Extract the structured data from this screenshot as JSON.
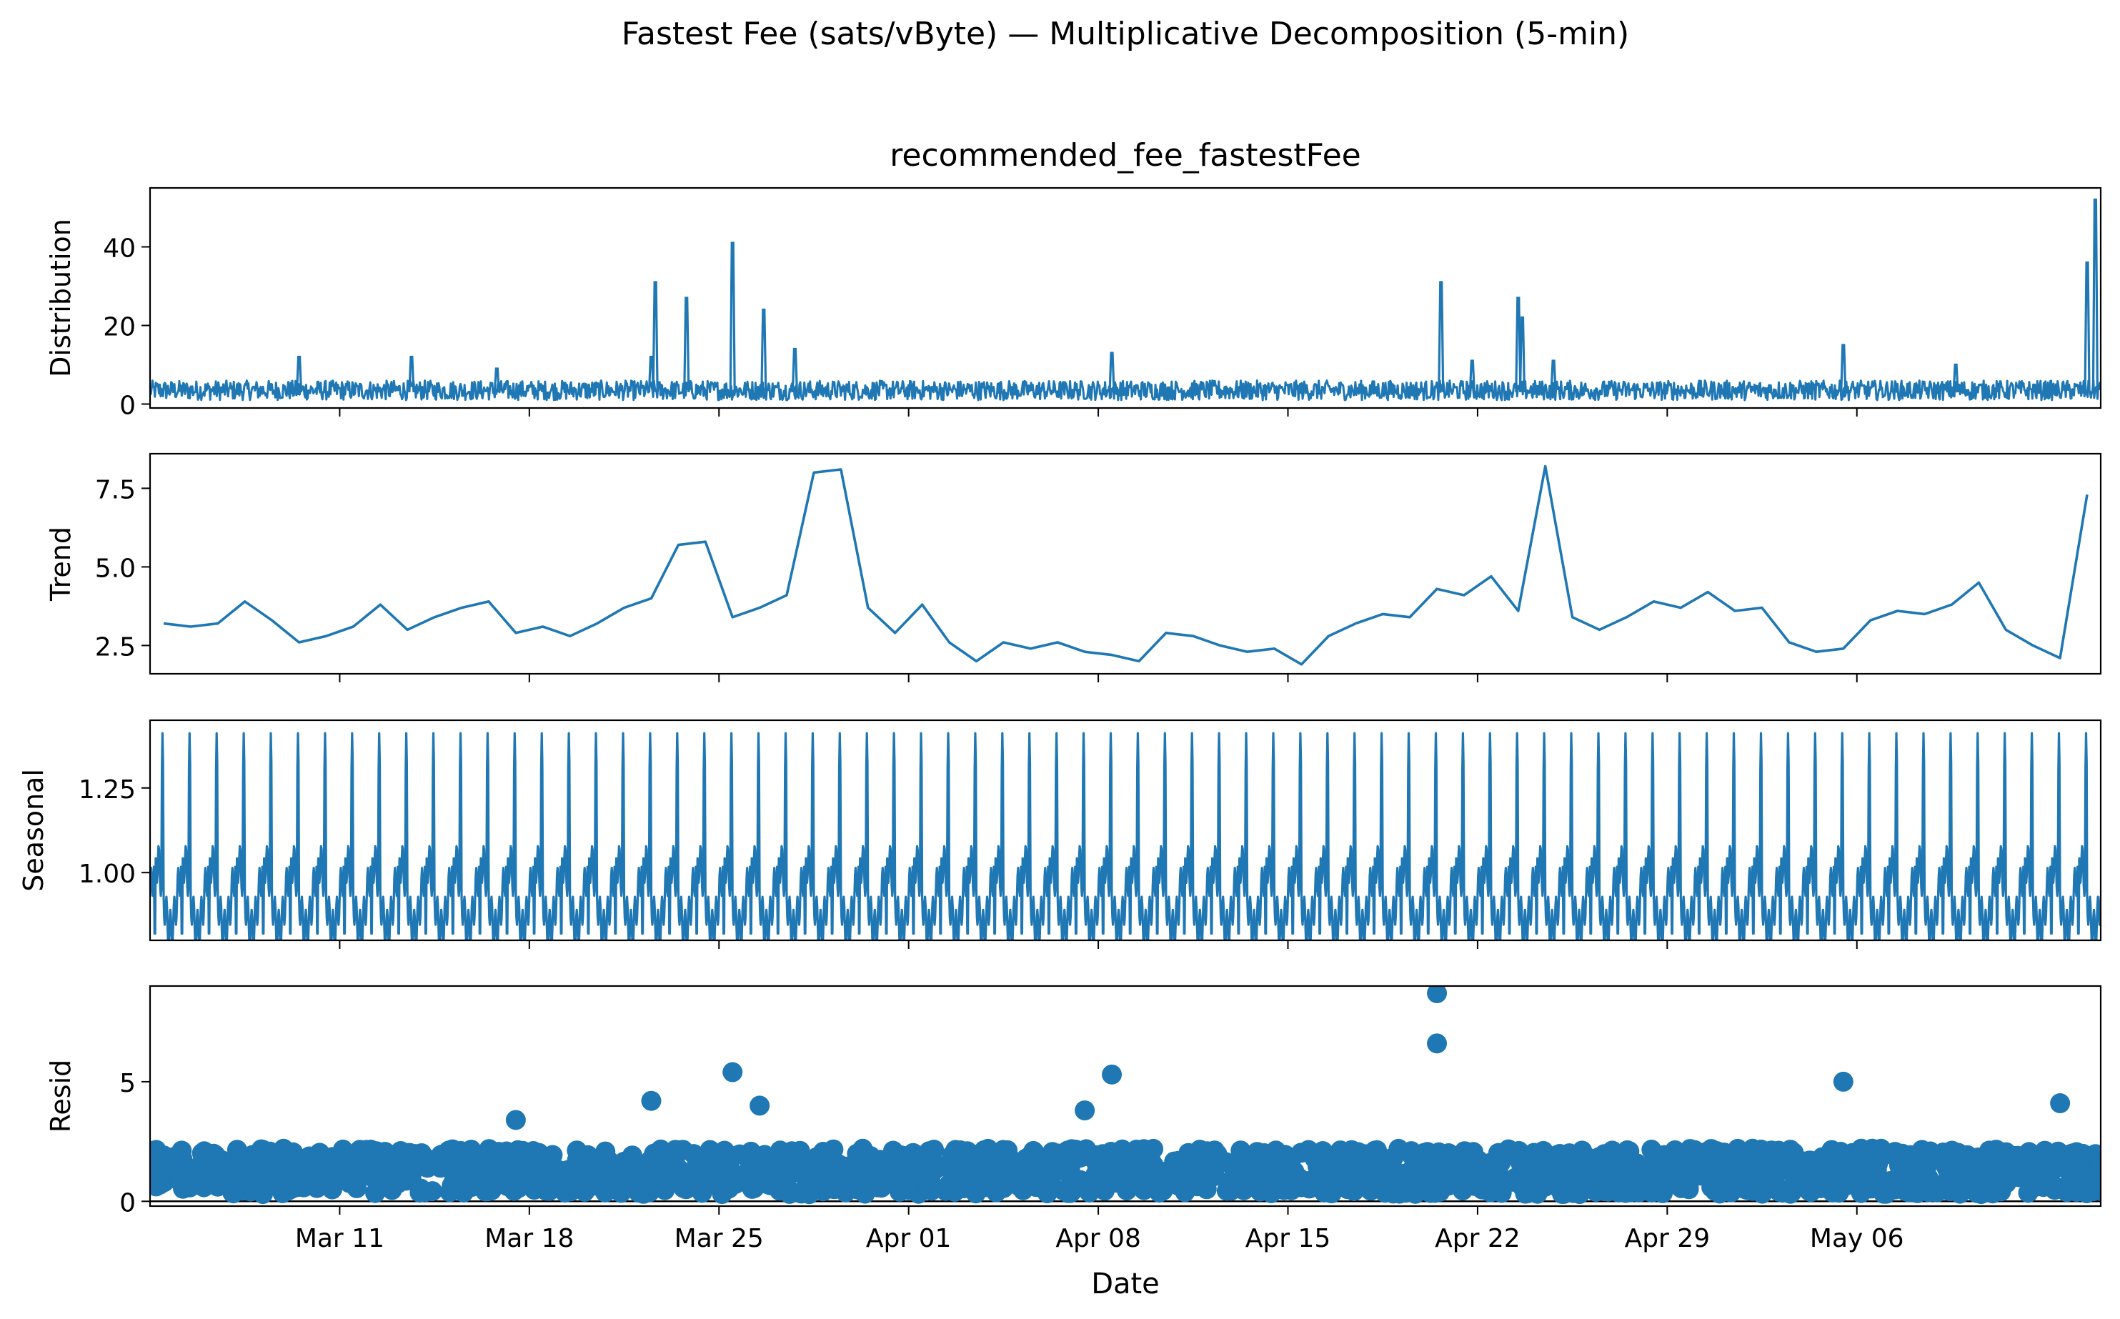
{
  "figure_title": "Fastest Fee (sats/vByte) — Multiplicative Decomposition (5-min)",
  "colors": {
    "series": "#1f77b4",
    "axis": "#000000",
    "zero_line": "#000000"
  },
  "chart_data": [
    {
      "type": "line",
      "title": "recommended_fee_fastestFee",
      "ylabel": "Distribution",
      "xlabel": "",
      "ylim": [
        -1,
        55
      ],
      "yticks": [
        0,
        20,
        40
      ],
      "ytick_labels": [
        "0",
        "20",
        "40"
      ],
      "grid": false,
      "x_axis": "date",
      "date_range": [
        "2024-03-04",
        "2024-05-14"
      ],
      "baseline": {
        "low": 1,
        "high": 6
      },
      "spikes": [
        {
          "date": "2024-03-09",
          "value": 12
        },
        {
          "date": "2024-03-13",
          "value": 12
        },
        {
          "date": "2024-03-16",
          "value": 9
        },
        {
          "date": "2024-03-22",
          "value": 12
        },
        {
          "date": "2024-03-22",
          "value": 31
        },
        {
          "date": "2024-03-23",
          "value": 27
        },
        {
          "date": "2024-03-25",
          "value": 41
        },
        {
          "date": "2024-03-26",
          "value": 24
        },
        {
          "date": "2024-03-27",
          "value": 14
        },
        {
          "date": "2024-04-08",
          "value": 13
        },
        {
          "date": "2024-04-20",
          "value": 31
        },
        {
          "date": "2024-04-21",
          "value": 11
        },
        {
          "date": "2024-04-23",
          "value": 27
        },
        {
          "date": "2024-04-23",
          "value": 22
        },
        {
          "date": "2024-04-24",
          "value": 11
        },
        {
          "date": "2024-05-05",
          "value": 15
        },
        {
          "date": "2024-05-09",
          "value": 10
        },
        {
          "date": "2024-05-14",
          "value": 52
        },
        {
          "date": "2024-05-14",
          "value": 36
        }
      ]
    },
    {
      "type": "line",
      "title": "",
      "ylabel": "Trend",
      "xlabel": "",
      "ylim": [
        1.6,
        8.6
      ],
      "yticks": [
        2.5,
        5.0,
        7.5
      ],
      "ytick_labels": [
        "2.5",
        "5.0",
        "7.5"
      ],
      "grid": false,
      "x_axis": "date",
      "x": [
        "2024-03-04",
        "2024-03-05",
        "2024-03-06",
        "2024-03-07",
        "2024-03-08",
        "2024-03-09",
        "2024-03-10",
        "2024-03-11",
        "2024-03-12",
        "2024-03-13",
        "2024-03-14",
        "2024-03-15",
        "2024-03-16",
        "2024-03-17",
        "2024-03-18",
        "2024-03-19",
        "2024-03-20",
        "2024-03-21",
        "2024-03-22",
        "2024-03-23",
        "2024-03-24",
        "2024-03-25",
        "2024-03-26",
        "2024-03-27",
        "2024-03-28",
        "2024-03-29",
        "2024-03-30",
        "2024-03-31",
        "2024-04-01",
        "2024-04-02",
        "2024-04-03",
        "2024-04-04",
        "2024-04-05",
        "2024-04-06",
        "2024-04-07",
        "2024-04-08",
        "2024-04-09",
        "2024-04-10",
        "2024-04-11",
        "2024-04-12",
        "2024-04-13",
        "2024-04-14",
        "2024-04-15",
        "2024-04-16",
        "2024-04-17",
        "2024-04-18",
        "2024-04-19",
        "2024-04-20",
        "2024-04-21",
        "2024-04-22",
        "2024-04-23",
        "2024-04-24",
        "2024-04-25",
        "2024-04-26",
        "2024-04-27",
        "2024-04-28",
        "2024-04-29",
        "2024-04-30",
        "2024-05-01",
        "2024-05-02",
        "2024-05-03",
        "2024-05-04",
        "2024-05-05",
        "2024-05-06",
        "2024-05-07",
        "2024-05-08",
        "2024-05-09",
        "2024-05-10",
        "2024-05-11",
        "2024-05-12",
        "2024-05-13",
        "2024-05-14"
      ],
      "values": [
        3.2,
        3.1,
        3.2,
        3.9,
        3.3,
        2.6,
        2.8,
        3.1,
        3.8,
        3.0,
        3.4,
        3.7,
        3.9,
        2.9,
        3.1,
        2.8,
        3.2,
        3.7,
        4.0,
        5.7,
        5.8,
        3.4,
        3.7,
        4.1,
        8.0,
        8.1,
        3.7,
        2.9,
        3.8,
        2.6,
        2.0,
        2.6,
        2.4,
        2.6,
        2.3,
        2.2,
        2.0,
        2.9,
        2.8,
        2.5,
        2.3,
        2.4,
        1.9,
        2.8,
        3.2,
        3.5,
        3.4,
        4.3,
        4.1,
        4.7,
        3.6,
        8.2,
        3.4,
        3.0,
        3.4,
        3.9,
        3.7,
        4.2,
        3.6,
        3.7,
        2.6,
        2.3,
        2.4,
        3.3,
        3.6,
        3.5,
        3.8,
        4.5,
        3.0,
        2.5,
        2.1,
        7.3
      ]
    },
    {
      "type": "line",
      "title": "",
      "ylabel": "Seasonal",
      "xlabel": "",
      "ylim": [
        0.8,
        1.45
      ],
      "yticks": [
        1.0,
        1.25
      ],
      "ytick_labels": [
        "1.00",
        "1.25"
      ],
      "grid": false,
      "x_axis": "date",
      "period_days": 1,
      "daily_peak": 1.42,
      "daily_trough": 0.82,
      "start": "2024-03-04",
      "end": "2024-05-14"
    },
    {
      "type": "scatter",
      "title": "",
      "ylabel": "Resid",
      "xlabel": "Date",
      "ylim": [
        -0.2,
        9.0
      ],
      "yticks": [
        0,
        5
      ],
      "ytick_labels": [
        "0",
        "5"
      ],
      "grid": false,
      "zero_line": 0,
      "x_axis": "date",
      "start": "2024-03-04",
      "end": "2024-05-14",
      "typical_band": [
        0.3,
        2.2
      ],
      "outliers": [
        {
          "date": "2024-03-17",
          "value": 3.4
        },
        {
          "date": "2024-03-22",
          "value": 4.2
        },
        {
          "date": "2024-03-25",
          "value": 5.4
        },
        {
          "date": "2024-03-26",
          "value": 4.0
        },
        {
          "date": "2024-04-07",
          "value": 3.8
        },
        {
          "date": "2024-04-08",
          "value": 5.3
        },
        {
          "date": "2024-04-20",
          "value": 8.7
        },
        {
          "date": "2024-04-20",
          "value": 6.6
        },
        {
          "date": "2024-05-05",
          "value": 5.0
        },
        {
          "date": "2024-05-13",
          "value": 4.1
        }
      ]
    }
  ],
  "x_axis": {
    "label": "Date",
    "tick_dates": [
      "2024-03-11",
      "2024-03-18",
      "2024-03-25",
      "2024-04-01",
      "2024-04-08",
      "2024-04-15",
      "2024-04-22",
      "2024-04-29",
      "2024-05-06"
    ],
    "tick_labels": [
      "Mar 11",
      "Mar 18",
      "Mar 25",
      "Apr 01",
      "Apr 08",
      "Apr 15",
      "Apr 22",
      "Apr 29",
      "May 06"
    ],
    "range": [
      "2024-03-04",
      "2024-05-14"
    ]
  }
}
